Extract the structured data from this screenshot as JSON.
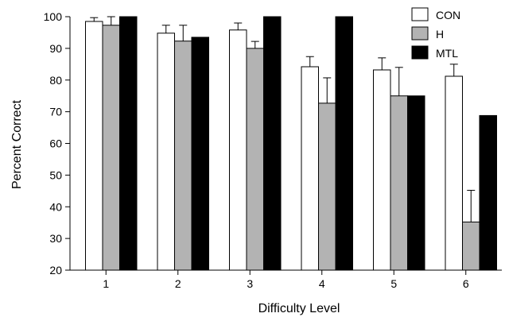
{
  "chart_data": {
    "type": "bar",
    "title": "",
    "xlabel": "Difficulty Level",
    "ylabel": "Percent Correct",
    "ylim": [
      20,
      100
    ],
    "yticks": [
      20,
      30,
      40,
      50,
      60,
      70,
      80,
      90,
      100
    ],
    "categories": [
      "1",
      "2",
      "3",
      "4",
      "5",
      "6"
    ],
    "series": [
      {
        "name": "CON",
        "color": "#ffffff",
        "values": [
          98.5,
          94.8,
          95.8,
          84.2,
          83.2,
          81.2
        ],
        "error": [
          1.2,
          2.5,
          2.2,
          3.2,
          3.8,
          3.8
        ]
      },
      {
        "name": "H",
        "color": "#b3b3b3",
        "values": [
          97.3,
          92.3,
          90.0,
          72.7,
          75.0,
          35.2
        ],
        "error": [
          2.7,
          5.0,
          2.2,
          8.0,
          9.0,
          10.0
        ]
      },
      {
        "name": "MTL",
        "color": "#000000",
        "values": [
          100,
          93.5,
          100,
          100,
          75.0,
          68.8
        ],
        "error": []
      }
    ],
    "legend": {
      "position": "top-right"
    },
    "grid": false
  }
}
